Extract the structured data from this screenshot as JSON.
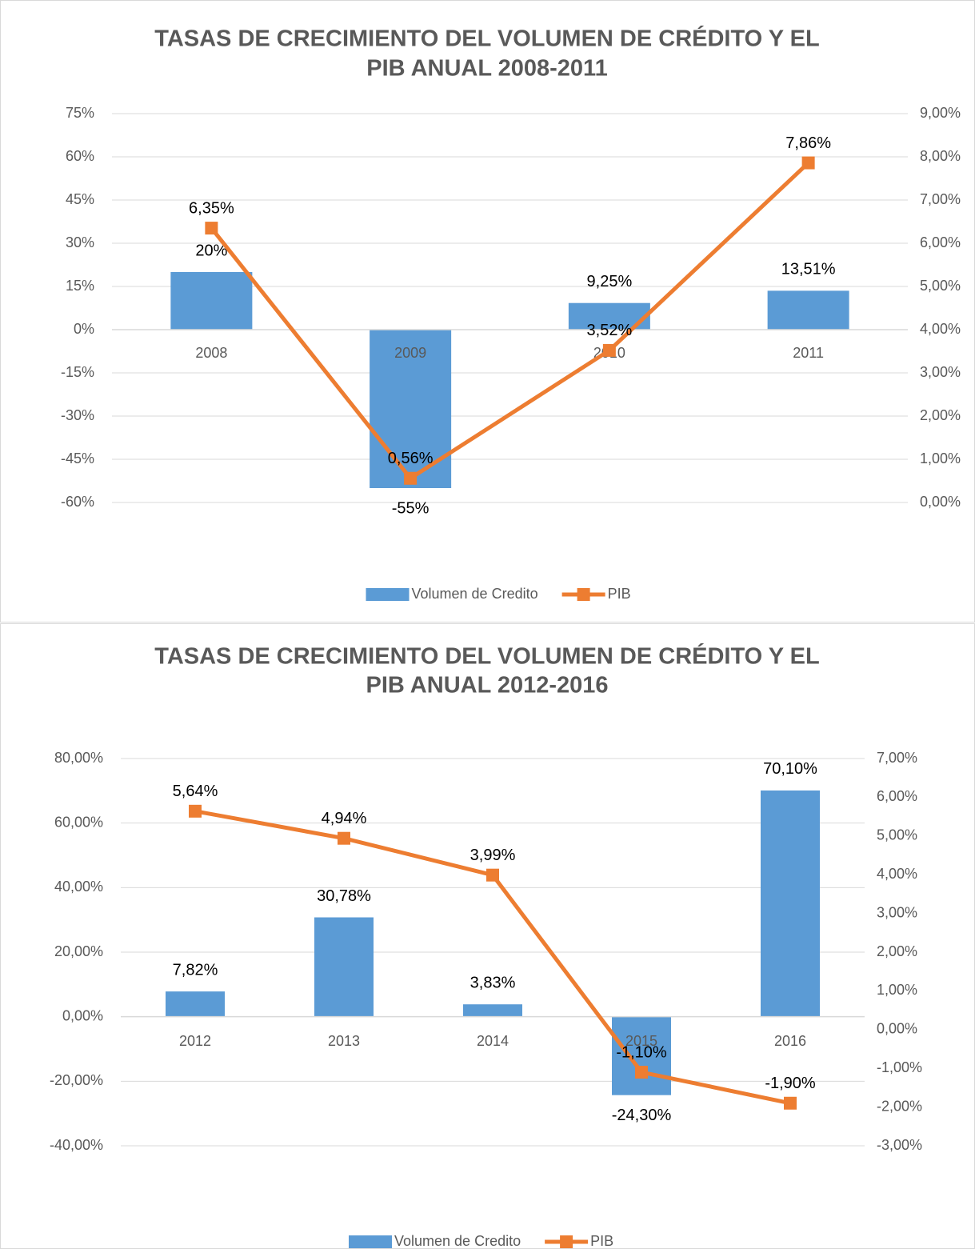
{
  "chart_data": [
    {
      "type": "bar_line",
      "title": [
        "TASAS DE CRECIMIENTO DEL VOLUMEN DE CRÉDITO Y EL",
        "PIB ANUAL  2008-2011"
      ],
      "categories": [
        "2008",
        "2009",
        "2010",
        "2011"
      ],
      "series": [
        {
          "name": "Volumen de Credito",
          "color": "#5b9bd5",
          "type": "bar",
          "values": [
            20,
            -55,
            9.25,
            13.51
          ],
          "value_labels": [
            "20%",
            "-55%",
            "9,25%",
            "13,51%"
          ]
        },
        {
          "name": "PIB",
          "color": "#ed7d31",
          "type": "line",
          "axis": "y2",
          "values": [
            6.35,
            0.56,
            3.52,
            7.86
          ],
          "value_labels": [
            "6,35%",
            "0,56%",
            "3,52%",
            "7,86%"
          ]
        }
      ],
      "ylim": [
        -60,
        75
      ],
      "yticks": [
        {
          "value": 75,
          "label": "75%"
        },
        {
          "value": 60,
          "label": "60%"
        },
        {
          "value": 45,
          "label": "45%"
        },
        {
          "value": 30,
          "label": "30%"
        },
        {
          "value": 15,
          "label": "15%"
        },
        {
          "value": 0,
          "label": "0%"
        },
        {
          "value": -15,
          "label": "-15%"
        },
        {
          "value": -30,
          "label": "-30%"
        },
        {
          "value": -45,
          "label": "-45%"
        },
        {
          "value": -60,
          "label": "-60%"
        }
      ],
      "y2lim": [
        0,
        9
      ],
      "y2ticks": [
        {
          "value": 9,
          "label": "9,00%"
        },
        {
          "value": 8,
          "label": "8,00%"
        },
        {
          "value": 7,
          "label": "7,00%"
        },
        {
          "value": 6,
          "label": "6,00%"
        },
        {
          "value": 5,
          "label": "5,00%"
        },
        {
          "value": 4,
          "label": "4,00%"
        },
        {
          "value": 3,
          "label": "3,00%"
        },
        {
          "value": 2,
          "label": "2,00%"
        },
        {
          "value": 1,
          "label": "1,00%"
        },
        {
          "value": 0,
          "label": "0,00%"
        }
      ],
      "grid": true,
      "legend": "bottom"
    },
    {
      "type": "bar_line",
      "title": [
        "TASAS DE CRECIMIENTO DEL VOLUMEN DE CRÉDITO Y EL",
        "PIB ANUAL 2012-2016"
      ],
      "categories": [
        "2012",
        "2013",
        "2014",
        "2015",
        "2016"
      ],
      "series": [
        {
          "name": "Volumen de Credito",
          "color": "#5b9bd5",
          "type": "bar",
          "values": [
            7.82,
            30.78,
            3.83,
            -24.3,
            70.1
          ],
          "value_labels": [
            "7,82%",
            "30,78%",
            "3,83%",
            "-24,30%",
            "70,10%"
          ]
        },
        {
          "name": "PIB",
          "color": "#ed7d31",
          "type": "line",
          "axis": "y2",
          "values": [
            5.64,
            4.94,
            3.99,
            -1.1,
            -1.9
          ],
          "value_labels": [
            "5,64%",
            "4,94%",
            "3,99%",
            "-1,10%",
            "-1,90%"
          ]
        }
      ],
      "ylim": [
        -40,
        80
      ],
      "yticks": [
        {
          "value": 80,
          "label": "80,00%"
        },
        {
          "value": 60,
          "label": "60,00%"
        },
        {
          "value": 40,
          "label": "40,00%"
        },
        {
          "value": 20,
          "label": "20,00%"
        },
        {
          "value": 0,
          "label": "0,00%"
        },
        {
          "value": -20,
          "label": "-20,00%"
        },
        {
          "value": -40,
          "label": "-40,00%"
        }
      ],
      "y2lim": [
        -3,
        7
      ],
      "y2ticks": [
        {
          "value": 7,
          "label": "7,00%"
        },
        {
          "value": 6,
          "label": "6,00%"
        },
        {
          "value": 5,
          "label": "5,00%"
        },
        {
          "value": 4,
          "label": "4,00%"
        },
        {
          "value": 3,
          "label": "3,00%"
        },
        {
          "value": 2,
          "label": "2,00%"
        },
        {
          "value": 1,
          "label": "1,00%"
        },
        {
          "value": 0,
          "label": "0,00%"
        },
        {
          "value": -1,
          "label": "-1,00%"
        },
        {
          "value": -2,
          "label": "-2,00%"
        },
        {
          "value": -3,
          "label": "-3,00%"
        }
      ],
      "grid": true,
      "legend": "bottom"
    }
  ]
}
